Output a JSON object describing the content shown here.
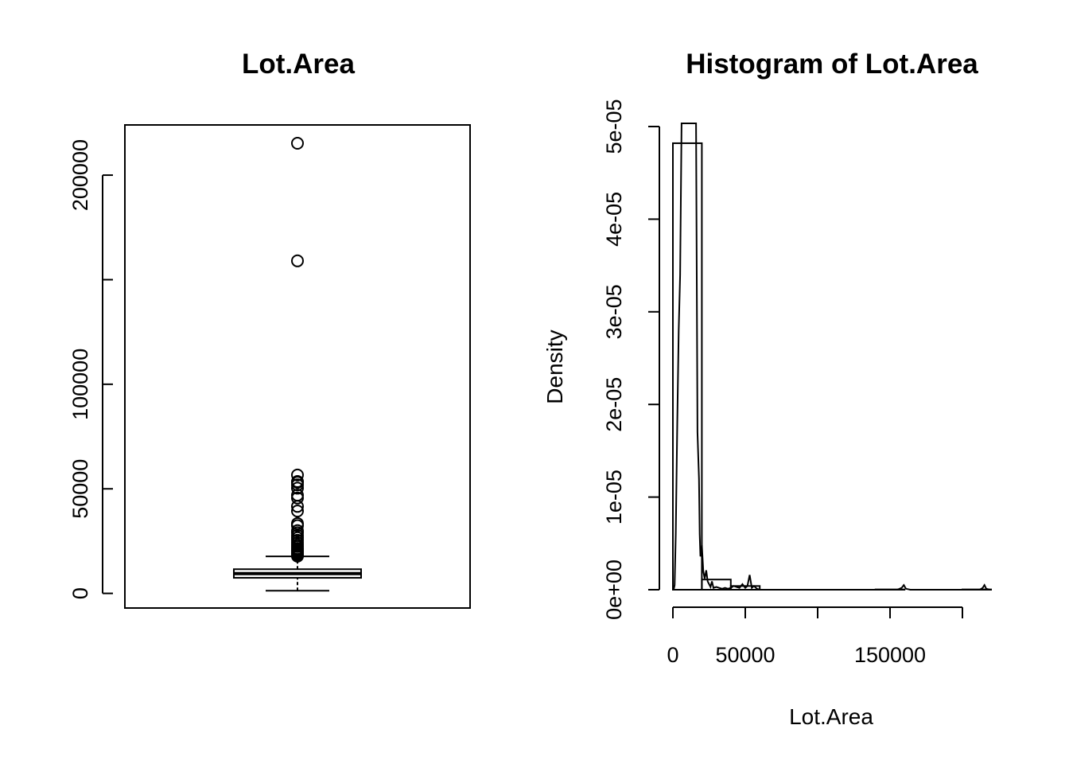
{
  "chart_data": [
    {
      "type": "boxplot",
      "title": "Lot.Area",
      "xlabel": "",
      "ylabel": "",
      "ylim": [
        -7000,
        224000
      ],
      "yticks": [
        0,
        50000,
        100000,
        150000,
        200000
      ],
      "ytick_labels": [
        "0",
        "50000",
        "100000",
        "",
        "200000"
      ],
      "box": {
        "whisker_low": 1300,
        "q1": 7440,
        "median": 9440,
        "q3": 11560,
        "whisker_high": 17700
      },
      "outliers": [
        215245,
        159000,
        56600,
        53500,
        53100,
        51900,
        50300,
        47000,
        45600,
        41600,
        39400,
        33400,
        32400,
        30000,
        29000,
        27700,
        26600,
        25400,
        24200,
        23200,
        22400,
        21500,
        21000,
        20500,
        19900,
        19300,
        18800,
        18200,
        17800
      ]
    },
    {
      "type": "histogram",
      "title": "Histogram of Lot.Area",
      "xlabel": "Lot.Area",
      "ylabel": "Density",
      "xlim": [
        0,
        220000
      ],
      "ylim": [
        0,
        5e-05
      ],
      "xticks": [
        0,
        50000,
        100000,
        150000,
        200000
      ],
      "xtick_labels": [
        "0",
        "50000",
        "",
        "150000",
        ""
      ],
      "yticks": [
        0,
        1e-05,
        2e-05,
        3e-05,
        4e-05,
        5e-05
      ],
      "ytick_labels": [
        "0e+00",
        "1e-05",
        "2e-05",
        "3e-05",
        "4e-05",
        "5e-05"
      ],
      "bins": [
        {
          "x0": 0,
          "x1": 20000,
          "density": 4.82e-05
        },
        {
          "x0": 20000,
          "x1": 40000,
          "density": 1.1e-06
        },
        {
          "x0": 40000,
          "x1": 60000,
          "density": 4e-07
        },
        {
          "x0": 60000,
          "x1": 80000,
          "density": 0
        },
        {
          "x0": 80000,
          "x1": 100000,
          "density": 0
        },
        {
          "x0": 100000,
          "x1": 120000,
          "density": 0
        },
        {
          "x0": 120000,
          "x1": 140000,
          "density": 0
        },
        {
          "x0": 140000,
          "x1": 160000,
          "density": 3e-08
        },
        {
          "x0": 160000,
          "x1": 180000,
          "density": 0
        },
        {
          "x0": 180000,
          "x1": 200000,
          "density": 0
        },
        {
          "x0": 200000,
          "x1": 220000,
          "density": 3e-08
        }
      ],
      "density_curve": {
        "x": [
          0,
          500,
          1200,
          2000,
          3000,
          4000,
          5000,
          6000,
          7000,
          7500,
          8000,
          9000,
          10000,
          11000,
          12000,
          12500,
          13000,
          14000,
          15000,
          16000,
          17000,
          18000,
          18500,
          19000,
          19500,
          20000,
          21000,
          22000,
          23000,
          24000,
          25000,
          26000,
          27000,
          28000,
          30000,
          32000,
          34000,
          36000,
          38000,
          40000,
          42000,
          44000,
          46000,
          48000,
          50000,
          51500,
          53000,
          54500,
          56000,
          58000,
          60000,
          80000,
          100000,
          120000,
          140000,
          155000,
          158000,
          159500,
          161000,
          164000,
          180000,
          200000,
          212000,
          214000,
          215200,
          216500,
          219000
        ],
        "y": [
          0,
          0,
          5e-07,
          6e-06,
          1.8e-05,
          2.8e-05,
          3.4e-05,
          5e-05,
          5e-05,
          5e-05,
          5e-05,
          5e-05,
          5e-05,
          5e-05,
          5e-05,
          5e-05,
          5e-05,
          5e-05,
          5e-05,
          5e-05,
          1.7e-05,
          1.2e-05,
          6e-06,
          3.6e-06,
          3.8e-06,
          4.8e-06,
          2e-06,
          1.2e-06,
          2.1e-06,
          9e-07,
          6e-07,
          3e-07,
          9e-07,
          2e-07,
          3e-07,
          2e-07,
          1e-07,
          2e-07,
          1e-07,
          2e-07,
          4e-07,
          3e-07,
          2e-07,
          6e-07,
          2e-07,
          4e-07,
          1.6e-06,
          2e-07,
          4e-07,
          1e-07,
          0,
          0,
          0,
          0,
          0,
          0,
          2e-07,
          5e-07,
          1e-07,
          0,
          0,
          0,
          0,
          2e-07,
          5e-07,
          1e-07,
          0
        ]
      }
    }
  ]
}
